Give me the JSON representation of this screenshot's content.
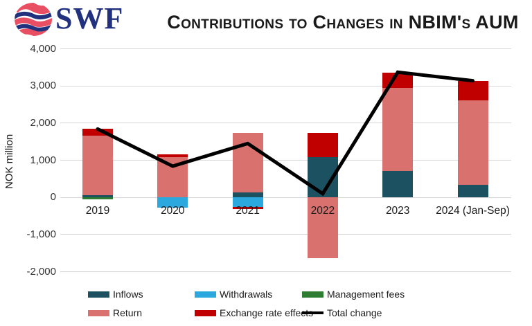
{
  "header": {
    "logo_text": "SWF",
    "title": "Contributions to Changes in NBIM's AUM"
  },
  "brand_colors": {
    "logo_navy": "#21317E",
    "logo_red": "#E94F62"
  },
  "chart_data": {
    "type": "bar",
    "subtype": "stacked-bars-with-total-line",
    "title": "Contributions to Changes in NBIM's AUM",
    "ylabel": "NOK million",
    "xlabel": "",
    "categories": [
      "2019",
      "2020",
      "2021",
      "2022",
      "2023",
      "2024 (Jan-Sep)"
    ],
    "series": [
      {
        "name": "Inflows",
        "color": "#1C5162",
        "values": [
          50,
          0,
          140,
          1090,
          720,
          330
        ]
      },
      {
        "name": "Withdrawals",
        "color": "#2BA9DF",
        "values": [
          0,
          -270,
          -250,
          0,
          0,
          0
        ]
      },
      {
        "name": "Management fees",
        "color": "#2E7B32",
        "values": [
          -45,
          0,
          0,
          0,
          0,
          0
        ]
      },
      {
        "name": "Return",
        "color": "#D9716F",
        "values": [
          1620,
          1080,
          1590,
          -1630,
          2225,
          2290
        ]
      },
      {
        "name": "Exchange rate effects",
        "color": "#C00000",
        "values": [
          185,
          75,
          -70,
          655,
          420,
          520
        ]
      }
    ],
    "line_series": {
      "name": "Total change",
      "color": "#000000",
      "values": [
        1840,
        840,
        1450,
        100,
        3370,
        3140
      ]
    },
    "ylim": [
      -2000,
      4000
    ],
    "yticks": [
      4000,
      3000,
      2000,
      1000,
      0,
      -1000,
      -2000
    ],
    "ytick_labels": [
      "4,000",
      "3,000",
      "2,000",
      "1,000",
      "0",
      "-1,000",
      "-2,000"
    ],
    "grid": true,
    "gridline_color": "#d7d7d7",
    "legend_position": "bottom",
    "legend_rows": [
      [
        "Inflows",
        "Withdrawals",
        "Management fees"
      ],
      [
        "Return",
        "Exchange rate effects",
        "Total change"
      ]
    ]
  }
}
